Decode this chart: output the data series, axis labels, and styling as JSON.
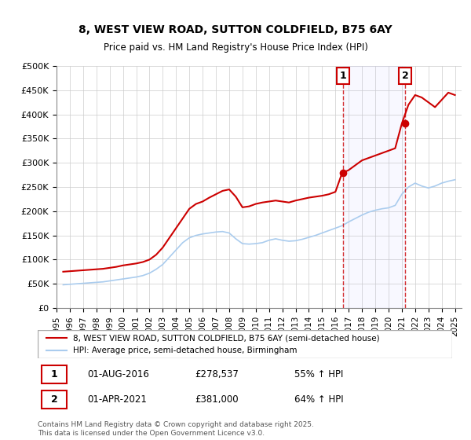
{
  "title_line1": "8, WEST VIEW ROAD, SUTTON COLDFIELD, B75 6AY",
  "title_line2": "Price paid vs. HM Land Registry's House Price Index (HPI)",
  "ylabel": "",
  "background_color": "#ffffff",
  "plot_bg_color": "#ffffff",
  "grid_color": "#cccccc",
  "red_line_color": "#cc0000",
  "blue_line_color": "#aaccee",
  "marker_color_red": "#cc0000",
  "ylim": [
    0,
    500000
  ],
  "yticks": [
    0,
    50000,
    100000,
    150000,
    200000,
    250000,
    300000,
    350000,
    400000,
    450000,
    500000
  ],
  "ytick_labels": [
    "£0",
    "£50K",
    "£100K",
    "£150K",
    "£200K",
    "£250K",
    "£300K",
    "£350K",
    "£400K",
    "£450K",
    "£500K"
  ],
  "xlim_start": 1995.0,
  "xlim_end": 2025.5,
  "xticks": [
    1995,
    1996,
    1997,
    1998,
    1999,
    2000,
    2001,
    2002,
    2003,
    2004,
    2005,
    2006,
    2007,
    2008,
    2009,
    2010,
    2011,
    2012,
    2013,
    2014,
    2015,
    2016,
    2017,
    2018,
    2019,
    2020,
    2021,
    2022,
    2023,
    2024,
    2025
  ],
  "marker1_x": 2016.583,
  "marker1_y": 278537,
  "marker1_label": "1",
  "marker1_date": "01-AUG-2016",
  "marker1_price": "£278,537",
  "marker1_hpi": "55% ↑ HPI",
  "marker2_x": 2021.25,
  "marker2_y": 381000,
  "marker2_label": "2",
  "marker2_date": "01-APR-2021",
  "marker2_price": "£381,000",
  "marker2_hpi": "64% ↑ HPI",
  "vline_color": "#cc0000",
  "legend_label_red": "8, WEST VIEW ROAD, SUTTON COLDFIELD, B75 6AY (semi-detached house)",
  "legend_label_blue": "HPI: Average price, semi-detached house, Birmingham",
  "footnote": "Contains HM Land Registry data © Crown copyright and database right 2025.\nThis data is licensed under the Open Government Licence v3.0.",
  "red_x": [
    1995.5,
    1996.0,
    1996.5,
    1997.0,
    1997.5,
    1998.0,
    1998.5,
    1999.0,
    1999.5,
    2000.0,
    2000.5,
    2001.0,
    2001.5,
    2002.0,
    2002.5,
    2003.0,
    2003.5,
    2004.0,
    2004.5,
    2005.0,
    2005.5,
    2006.0,
    2006.5,
    2007.0,
    2007.5,
    2008.0,
    2008.5,
    2009.0,
    2009.5,
    2010.0,
    2010.5,
    2011.0,
    2011.5,
    2012.0,
    2012.5,
    2013.0,
    2013.5,
    2014.0,
    2014.5,
    2015.0,
    2015.5,
    2016.0,
    2016.5,
    2017.0,
    2017.5,
    2018.0,
    2018.5,
    2019.0,
    2019.5,
    2020.0,
    2020.5,
    2021.0,
    2021.5,
    2022.0,
    2022.5,
    2023.0,
    2023.5,
    2024.0,
    2024.5,
    2025.0
  ],
  "red_y": [
    75000,
    76000,
    77000,
    78000,
    79000,
    80000,
    81000,
    83000,
    85000,
    88000,
    90000,
    92000,
    95000,
    100000,
    110000,
    125000,
    145000,
    165000,
    185000,
    205000,
    215000,
    220000,
    228000,
    235000,
    242000,
    245000,
    230000,
    208000,
    210000,
    215000,
    218000,
    220000,
    222000,
    220000,
    218000,
    222000,
    225000,
    228000,
    230000,
    232000,
    235000,
    240000,
    278537,
    285000,
    295000,
    305000,
    310000,
    315000,
    320000,
    325000,
    330000,
    381000,
    420000,
    440000,
    435000,
    425000,
    415000,
    430000,
    445000,
    440000
  ],
  "blue_x": [
    1995.5,
    1996.0,
    1996.5,
    1997.0,
    1997.5,
    1998.0,
    1998.5,
    1999.0,
    1999.5,
    2000.0,
    2000.5,
    2001.0,
    2001.5,
    2002.0,
    2002.5,
    2003.0,
    2003.5,
    2004.0,
    2004.5,
    2005.0,
    2005.5,
    2006.0,
    2006.5,
    2007.0,
    2007.5,
    2008.0,
    2008.5,
    2009.0,
    2009.5,
    2010.0,
    2010.5,
    2011.0,
    2011.5,
    2012.0,
    2012.5,
    2013.0,
    2013.5,
    2014.0,
    2014.5,
    2015.0,
    2015.5,
    2016.0,
    2016.5,
    2017.0,
    2017.5,
    2018.0,
    2018.5,
    2019.0,
    2019.5,
    2020.0,
    2020.5,
    2021.0,
    2021.5,
    2022.0,
    2022.5,
    2023.0,
    2023.5,
    2024.0,
    2024.5,
    2025.0
  ],
  "blue_y": [
    48000,
    49000,
    50000,
    51000,
    52000,
    53000,
    54000,
    56000,
    58000,
    60000,
    62000,
    64000,
    67000,
    72000,
    80000,
    90000,
    105000,
    120000,
    135000,
    145000,
    150000,
    153000,
    155000,
    157000,
    158000,
    155000,
    143000,
    133000,
    132000,
    133000,
    135000,
    140000,
    143000,
    140000,
    138000,
    139000,
    142000,
    146000,
    150000,
    155000,
    160000,
    165000,
    170000,
    178000,
    185000,
    192000,
    198000,
    202000,
    205000,
    207000,
    212000,
    235000,
    250000,
    258000,
    252000,
    248000,
    252000,
    258000,
    262000,
    265000
  ]
}
